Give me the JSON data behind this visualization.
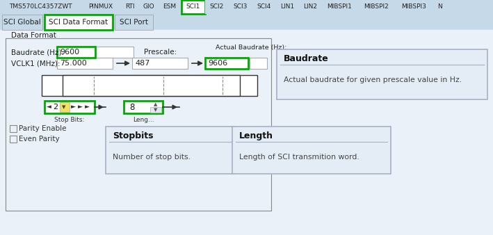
{
  "bg_color": "#ccdde8",
  "tab_bar_color": "#c5d9e8",
  "white": "#ffffff",
  "green_border": "#00aa00",
  "dark_text": "#222222",
  "panel_bg": "#eaf1f8",
  "groupbox_bg": "#eaf1f8",
  "tooltip_bg": "#e4ecf5",
  "tooltip_border": "#aab0c4",
  "top_tabs": [
    "TMS570LC4357ZWT",
    "PINMUX",
    "RTI",
    "GIO",
    "ESM",
    "SCI1",
    "SCI2",
    "SCI3",
    "SCI4",
    "LIN1",
    "LIN2",
    "MIBSPI1",
    "MIBSPI2",
    "MIBSPI3",
    "N"
  ],
  "active_top_tab": "SCI1",
  "sub_tabs": [
    "SCI Global",
    "SCI Data Format",
    "SCI Port"
  ],
  "active_sub_tab": "SCI Data Format",
  "data_format_label": "Data Format",
  "baudrate_label": "Baudrate (Hz):",
  "baudrate_value": "9600",
  "vclk_label": "VCLK1 (MHz):",
  "vclk_value": "75.000",
  "prescale_label": "Prescale:",
  "prescale_value": "487",
  "actual_baudrate_label": "Actual Baudrate (Hz):",
  "actual_baudrate_value": "9606",
  "stopbits_value": "2",
  "length_value": "8",
  "stopbits_label": "Stop Bits:",
  "length_label": "Leng...",
  "parity_enable": "Parity Enable",
  "even_parity": "Even Parity",
  "baudrate_tooltip_title": "Baudrate",
  "baudrate_tooltip_body": "Actual baudrate for given prescale value in Hz.",
  "stopbits_tooltip_title": "Stopbits",
  "stopbits_tooltip_body": "Number of stop bits.",
  "length_tooltip_title": "Length",
  "length_tooltip_body": "Length of SCI transmition word."
}
